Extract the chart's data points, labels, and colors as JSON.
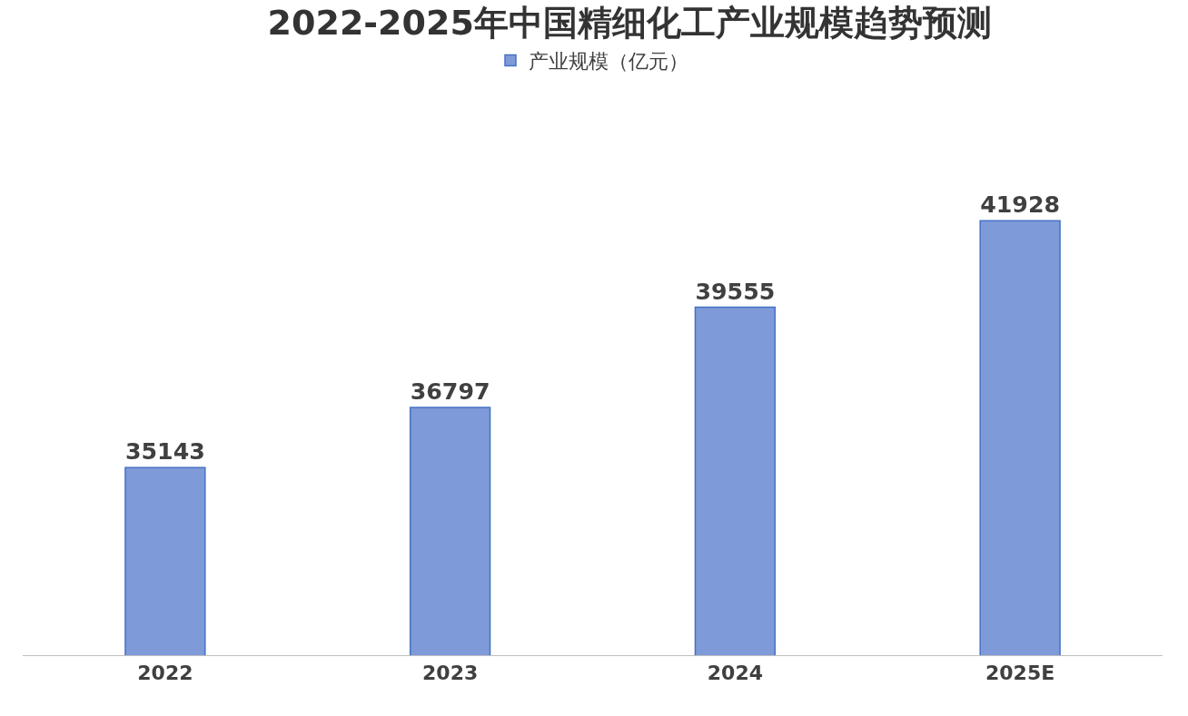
{
  "chart_data": {
    "type": "bar",
    "title": "2022-2025年中国精细化工产业规模趋势预测",
    "categories": [
      "2022",
      "2023",
      "2024",
      "2025E"
    ],
    "series": [
      {
        "name": "产业规模（亿元）",
        "color": "#7f9ad8",
        "values": [
          35143,
          36797,
          39555,
          41928
        ]
      }
    ],
    "tick_labels": "x",
    "data_labels": true,
    "legend": "top"
  }
}
